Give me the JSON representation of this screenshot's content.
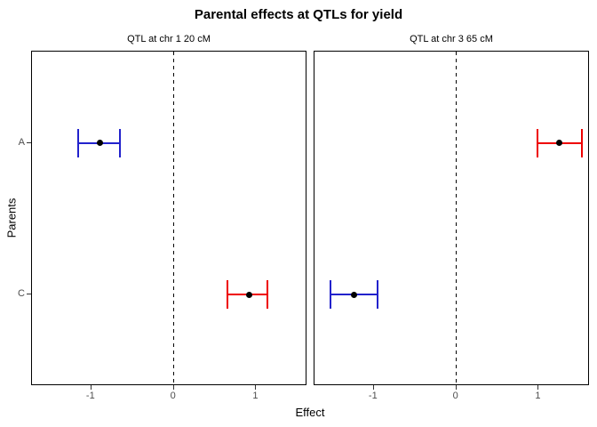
{
  "chart_data": {
    "type": "scatter",
    "subtype": "horizontal-error-bars-faceted",
    "title": "Parental effects at QTLs for yield",
    "xlabel": "Effect",
    "ylabel": "Parents",
    "x_ticks": [
      -1,
      0,
      1
    ],
    "xlim": [
      -1.72,
      1.62
    ],
    "y_categories": [
      "A",
      "C"
    ],
    "grid": "off",
    "legend": "none",
    "zero_line_x": 0,
    "zero_line_style": "dashed",
    "point_color": "#000000",
    "axis_text_color": "#4d4d4d",
    "colors": {
      "blue": "#2222cc",
      "red": "#ee0000"
    },
    "facets": [
      {
        "label": "QTL at chr 1 20 cM",
        "points": [
          {
            "parent": "A",
            "estimate": -0.9,
            "ci_low": -1.16,
            "ci_high": -0.65,
            "color": "blue"
          },
          {
            "parent": "C",
            "estimate": 0.91,
            "ci_low": 0.65,
            "ci_high": 1.14,
            "color": "red"
          }
        ]
      },
      {
        "label": "QTL at chr 3 65 cM",
        "points": [
          {
            "parent": "A",
            "estimate": 1.25,
            "ci_low": 0.98,
            "ci_high": 1.52,
            "color": "red"
          },
          {
            "parent": "C",
            "estimate": -1.24,
            "ci_low": -1.53,
            "ci_high": -0.96,
            "color": "blue"
          }
        ]
      }
    ]
  }
}
